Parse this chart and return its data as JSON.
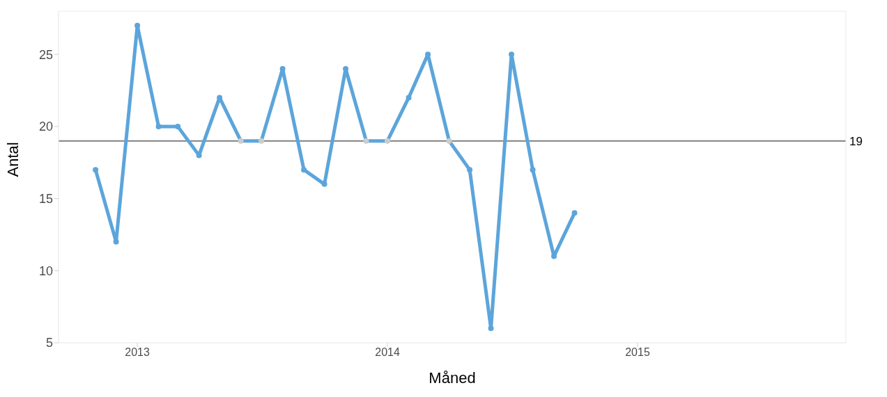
{
  "chart_data": {
    "type": "line",
    "xlabel": "Måned",
    "ylabel": "Antal",
    "x": [
      "2012-11",
      "2012-12",
      "2013-01",
      "2013-02",
      "2013-03",
      "2013-04",
      "2013-05",
      "2013-06",
      "2013-07",
      "2013-08",
      "2013-09",
      "2013-10",
      "2013-11",
      "2013-12",
      "2014-01",
      "2014-02",
      "2014-03",
      "2014-04",
      "2014-05",
      "2014-06",
      "2014-07",
      "2014-08",
      "2014-09",
      "2014-10"
    ],
    "series": [
      {
        "color": "#5ca5db",
        "values": [
          17,
          12,
          27,
          20,
          20,
          18,
          22,
          19,
          19,
          24,
          17,
          16,
          24,
          19,
          19,
          22,
          25,
          19,
          17,
          6,
          25,
          17,
          11,
          14
        ],
        "colors": [
          "#5ca5db",
          "#5ca5db",
          "#5ca5db",
          "#5ca5db",
          "#5ca5db",
          "#5ca5db",
          "#5ca5db",
          "#cccccc",
          "#cccccc",
          "#5ca5db",
          "#5ca5db",
          "#5ca5db",
          "#5ca5db",
          "#cccccc",
          "#cccccc",
          "#5ca5db",
          "#5ca5db",
          "#cccccc",
          "#5ca5db",
          "#5ca5db",
          "#5ca5db",
          "#5ca5db",
          "#5ca5db",
          "#5ca5db"
        ]
      }
    ],
    "xlim": [
      "2012-09-08",
      "2015-11"
    ],
    "xticks": [
      {
        "value": "2013",
        "label": "2013"
      },
      {
        "value": "2014",
        "label": "2014"
      },
      {
        "value": "2015",
        "label": "2015"
      }
    ],
    "ylim": [
      5,
      28
    ],
    "yticks": [
      5,
      10,
      15,
      20,
      25
    ],
    "ref_lines": [
      {
        "axis": "y",
        "value": 19,
        "label": "19",
        "color": "#808080"
      }
    ],
    "marker": "circle",
    "line_style": "solid",
    "grid": false,
    "legend": false
  }
}
